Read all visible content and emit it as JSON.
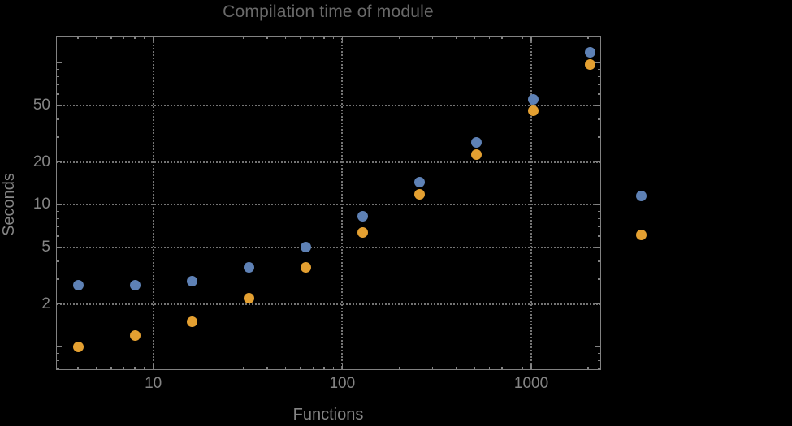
{
  "chart_data": {
    "type": "scatter",
    "title": "Compilation time of module",
    "xlabel": "Functions",
    "ylabel": "Seconds",
    "x_scale": "log",
    "y_scale": "log",
    "xlim": [
      3.06,
      2330
    ],
    "ylim": [
      0.69,
      155
    ],
    "grid": "dotted",
    "x": [
      4,
      8,
      16,
      32,
      64,
      128,
      256,
      512,
      1024,
      2048
    ],
    "series": [
      {
        "name": "blue",
        "label": "",
        "color": "#5e81b5",
        "values": [
          2.7,
          2.7,
          2.9,
          3.6,
          5.0,
          8.3,
          14.4,
          27.4,
          55,
          119
        ]
      },
      {
        "name": "orange",
        "label": "",
        "color": "#e4a031",
        "values": [
          1.0,
          1.2,
          1.5,
          2.2,
          3.6,
          6.4,
          11.9,
          22.6,
          46,
          97
        ]
      }
    ],
    "x_axis": {
      "gridlines": [
        10,
        100,
        1000
      ],
      "major_ticks": [
        {
          "value": 10,
          "label": "10"
        },
        {
          "value": 100,
          "label": "100"
        },
        {
          "value": 1000,
          "label": "1000"
        }
      ],
      "minor_ticks": [
        4,
        5,
        6,
        7,
        8,
        9,
        20,
        30,
        40,
        50,
        60,
        70,
        80,
        90,
        200,
        300,
        400,
        500,
        600,
        700,
        800,
        900,
        2000
      ]
    },
    "y_axis": {
      "gridlines": [
        2,
        5,
        10,
        20,
        50
      ],
      "major_ticks": [
        {
          "value": 1,
          "label": ""
        },
        {
          "value": 2,
          "label": "2"
        },
        {
          "value": 5,
          "label": "5"
        },
        {
          "value": 10,
          "label": "10"
        },
        {
          "value": 20,
          "label": "20"
        },
        {
          "value": 50,
          "label": "50"
        },
        {
          "value": 100,
          "label": ""
        }
      ],
      "minor_ticks": [
        0.7,
        0.8,
        0.9,
        3,
        4,
        6,
        7,
        8,
        9,
        30,
        40,
        60,
        70,
        80,
        90
      ]
    },
    "legend": {
      "position": "right-center",
      "entries": [
        {
          "label": "",
          "color": "#5e81b5"
        },
        {
          "label": "",
          "color": "#e4a031"
        }
      ]
    },
    "colors": {
      "background": "#000000",
      "frame": "#828282",
      "grid": "#747474",
      "tick_labels": "#858585",
      "axis_labels": "#858585",
      "title": "#696969"
    }
  }
}
